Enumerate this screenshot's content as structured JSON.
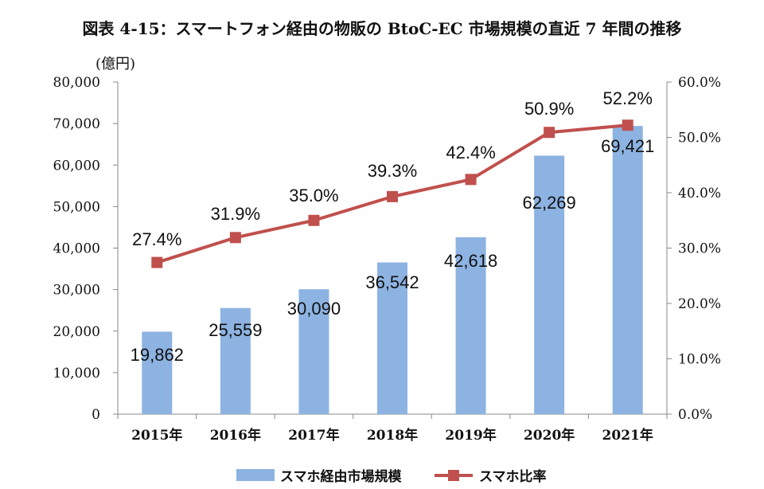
{
  "chart_data": {
    "type": "bar",
    "title": "図表 4-15：スマートフォン経由の物販の BtoC-EC 市場規模の直近 7 年間の推移",
    "y_unit_label": "(億円)",
    "categories": [
      "2015年",
      "2016年",
      "2017年",
      "2018年",
      "2019年",
      "2020年",
      "2021年"
    ],
    "series": [
      {
        "name": "スマホ経由市場規模",
        "type": "bar",
        "axis": "left",
        "color": "#8db3e2",
        "values": [
          19862,
          25559,
          30090,
          36542,
          42618,
          62269,
          69421
        ],
        "labels": [
          "19,862",
          "25,559",
          "30,090",
          "36,542",
          "42,618",
          "62,269",
          "69,421"
        ]
      },
      {
        "name": "スマホ比率",
        "type": "line",
        "axis": "right",
        "color": "#c0504d",
        "values": [
          27.4,
          31.9,
          35.0,
          39.3,
          42.4,
          50.9,
          52.2
        ],
        "labels": [
          "27.4%",
          "31.9%",
          "35.0%",
          "39.3%",
          "42.4%",
          "50.9%",
          "52.2%"
        ]
      }
    ],
    "y_left": {
      "ylim": [
        0,
        80000
      ],
      "ticks": [
        0,
        10000,
        20000,
        30000,
        40000,
        50000,
        60000,
        70000,
        80000
      ],
      "tick_labels": [
        "0",
        "10,000",
        "20,000",
        "30,000",
        "40,000",
        "50,000",
        "60,000",
        "70,000",
        "80,000"
      ]
    },
    "y_right": {
      "ylim": [
        0,
        60
      ],
      "ticks": [
        0,
        10,
        20,
        30,
        40,
        50,
        60
      ],
      "tick_labels": [
        "0.0%",
        "10.0%",
        "20.0%",
        "30.0%",
        "40.0%",
        "50.0%",
        "60.0%"
      ]
    },
    "grid": false,
    "legend": "bottom"
  }
}
